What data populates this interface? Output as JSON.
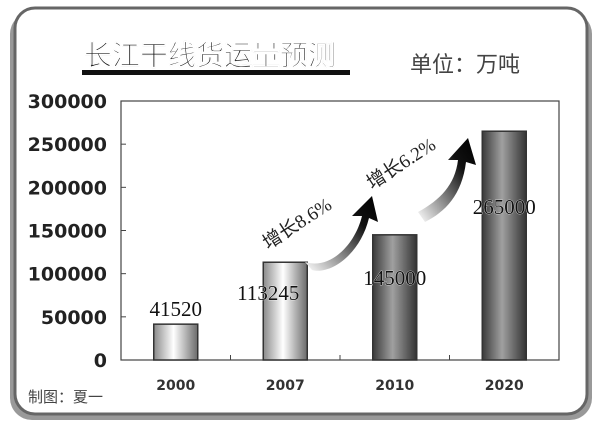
{
  "chart_data": {
    "type": "bar",
    "title": "长江干线货运量预测",
    "unit_label": "单位：万吨",
    "credit": "制图：夏一",
    "categories": [
      "2000",
      "2007",
      "2010",
      "2020"
    ],
    "values": [
      41520,
      113245,
      145000,
      265000
    ],
    "data_labels": [
      "41520",
      "113245",
      "145000",
      "265000"
    ],
    "ylim": [
      0,
      300000
    ],
    "yticks": [
      "0",
      "50000",
      "100000",
      "150000",
      "200000",
      "250000",
      "300000"
    ],
    "grid": false,
    "legend": "none",
    "annotations": [
      {
        "text": "增长8.6%",
        "from": "2007",
        "to": "2010"
      },
      {
        "text": "增长6.2%",
        "from": "2010",
        "to": "2020"
      }
    ],
    "colors": {
      "bar_light": "#e8e8e8",
      "bar_dark": "#555555",
      "frame": "#666666"
    }
  }
}
